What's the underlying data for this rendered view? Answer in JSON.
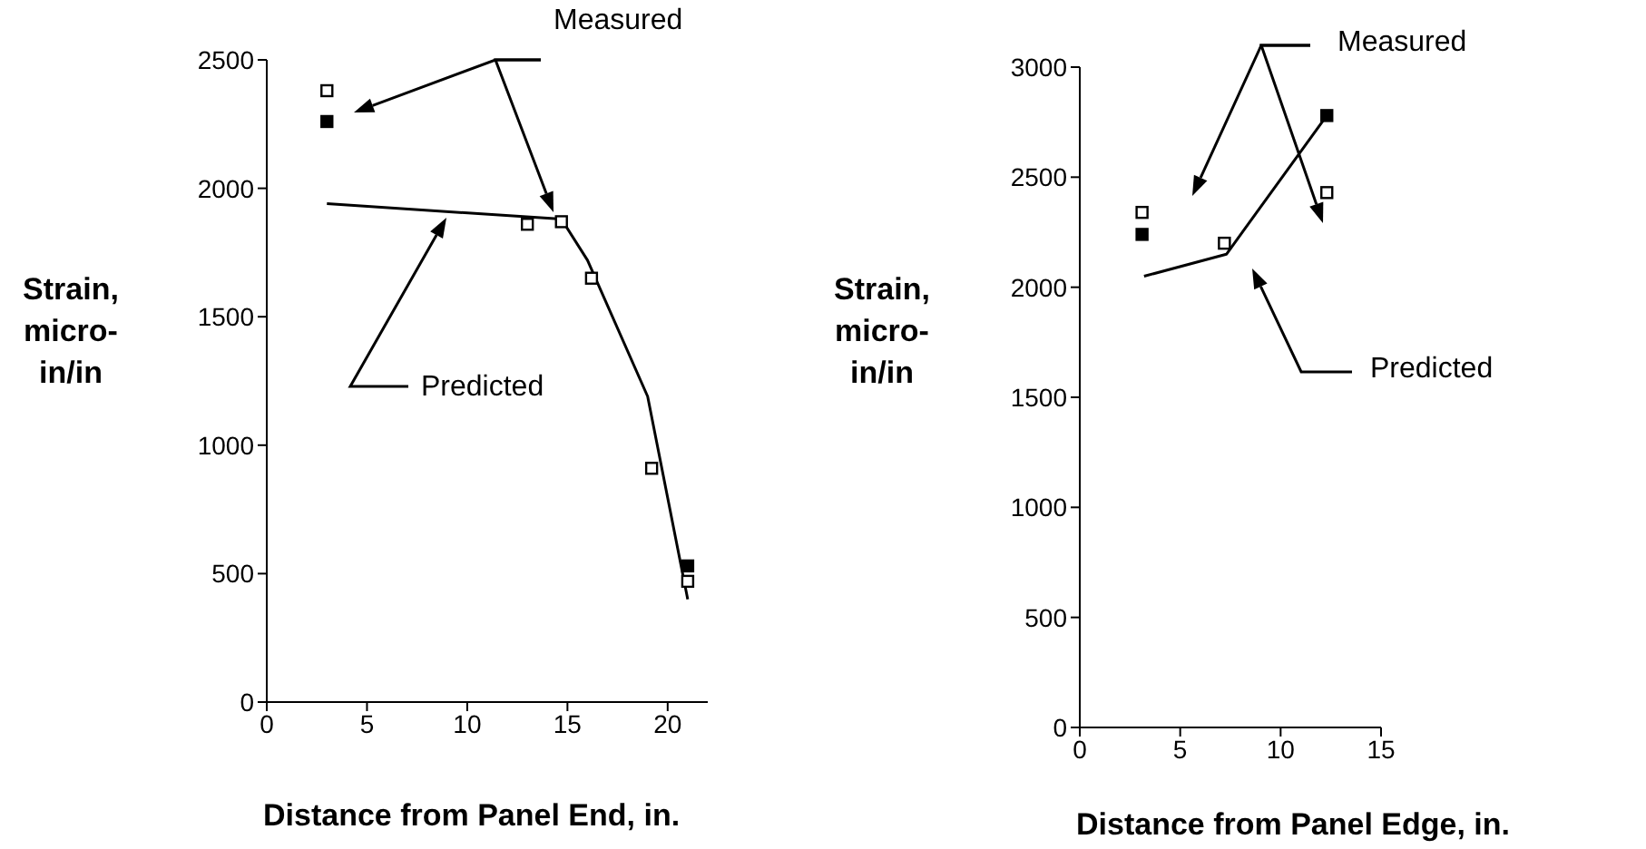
{
  "chart_data": [
    {
      "type": "scatter",
      "xlabel": "Distance from Panel End, in.",
      "ylabel": "Strain, micro-in/in",
      "xlim": [
        0,
        22
      ],
      "xticks": [
        0,
        5,
        10,
        15,
        20
      ],
      "ylim": [
        0,
        2500
      ],
      "yticks": [
        0,
        500,
        1000,
        1500,
        2000,
        2500
      ],
      "annotations": [
        "Measured",
        "Predicted"
      ],
      "series": [
        {
          "type": "scatter",
          "marker": "square",
          "color": "#ffffff",
          "x": [
            3,
            13,
            14.7,
            16.2,
            19.2,
            21
          ],
          "values": [
            2380,
            1860,
            1870,
            1650,
            910,
            470
          ]
        },
        {
          "type": "scatter",
          "marker": "square",
          "color": "#000000",
          "x": [
            3,
            21
          ],
          "values": [
            2260,
            530
          ]
        },
        {
          "type": "line",
          "marker": "none",
          "color": "#000000",
          "x": [
            3,
            14.7,
            16,
            19,
            21
          ],
          "values": [
            1940,
            1880,
            1720,
            1190,
            400
          ]
        }
      ]
    },
    {
      "type": "scatter",
      "xlabel": "Distance from Panel Edge, in.",
      "ylabel": "Strain, micro-in/in",
      "xlim": [
        0,
        15
      ],
      "xticks": [
        0,
        5,
        10,
        15
      ],
      "ylim": [
        0,
        3000
      ],
      "yticks": [
        0,
        500,
        1000,
        1500,
        2000,
        2500,
        3000
      ],
      "annotations": [
        "Measured",
        "Predicted"
      ],
      "series": [
        {
          "type": "scatter",
          "marker": "square",
          "color": "#ffffff",
          "x": [
            3.1,
            7.2,
            12.3
          ],
          "values": [
            2340,
            2200,
            2430
          ]
        },
        {
          "type": "scatter",
          "marker": "square",
          "color": "#000000",
          "x": [
            3.1,
            12.3
          ],
          "values": [
            2240,
            2780
          ]
        },
        {
          "type": "line",
          "marker": "none",
          "color": "#000000",
          "x": [
            3.2,
            7.3,
            12.3
          ],
          "values": [
            2050,
            2150,
            2780
          ]
        }
      ]
    }
  ]
}
